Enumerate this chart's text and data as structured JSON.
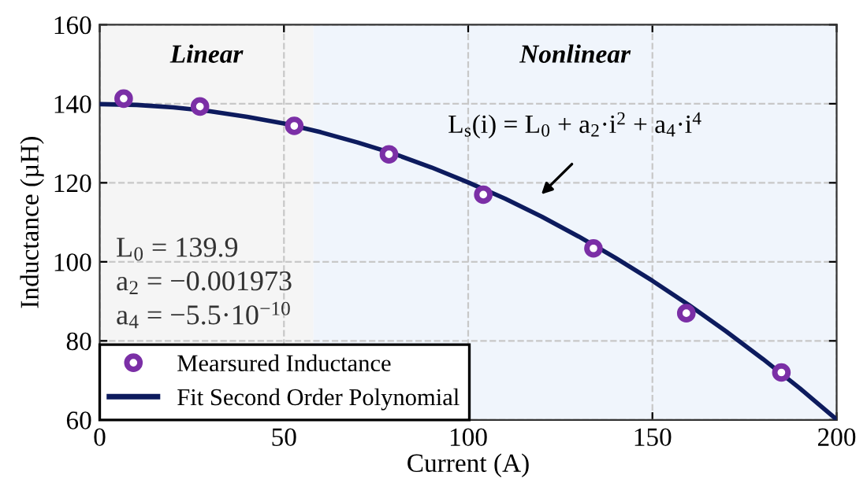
{
  "chart_data": {
    "type": "scatter",
    "xlabel": "Current (A)",
    "ylabel": "Inductance (µH)",
    "xlim": [
      0,
      200
    ],
    "xticks": [
      0,
      50,
      100,
      150,
      200
    ],
    "ylim": [
      60,
      160
    ],
    "yticks": [
      60,
      80,
      100,
      120,
      140,
      160
    ],
    "grid": true,
    "legend": "bottom left",
    "bands": [
      {
        "axis": "x",
        "from": 0,
        "to": 58,
        "label": "Linear",
        "color": "#f5f5f5"
      },
      {
        "axis": "x",
        "from": 58,
        "to": 200,
        "label": "Nonlinear",
        "color": "#f0f5fc"
      }
    ],
    "series": [
      {
        "name": "Mearsured Inductance",
        "marker": "circle",
        "color": "#7b2fa6",
        "x": [
          6.5,
          27.2,
          52.8,
          78.5,
          104.1,
          134,
          159.2,
          185
        ],
        "values": [
          141.3,
          139.3,
          134.4,
          127.2,
          117.0,
          103.4,
          87.0,
          72.0
        ]
      },
      {
        "name": "Fit Second Order Polynomial",
        "type": "line",
        "line_style": "solid",
        "color": "#0d1b5e",
        "x": [
          0,
          10,
          20,
          30,
          40,
          50,
          60,
          70,
          80,
          90,
          100,
          110,
          120,
          130,
          140,
          150,
          160,
          170,
          180,
          190,
          200
        ],
        "values": [
          139.9,
          139.7,
          139.1,
          138.1,
          136.7,
          135.0,
          132.8,
          130.2,
          127.3,
          123.9,
          120.1,
          116.0,
          111.4,
          106.4,
          101.0,
          95.2,
          89.0,
          82.4,
          75.4,
          68.0,
          60.1
        ]
      }
    ],
    "annotations": [
      "L$_{s}$(i) = L$_{0}$ + a$_{2}$·i$^{2}$ + a$_{4}$·i$^{4}$",
      "L$_{0}$ = 139.9",
      "a$_{2}$ = −0.001973",
      "a$_{4}$ = −5.5·10$^{−10}$"
    ]
  }
}
